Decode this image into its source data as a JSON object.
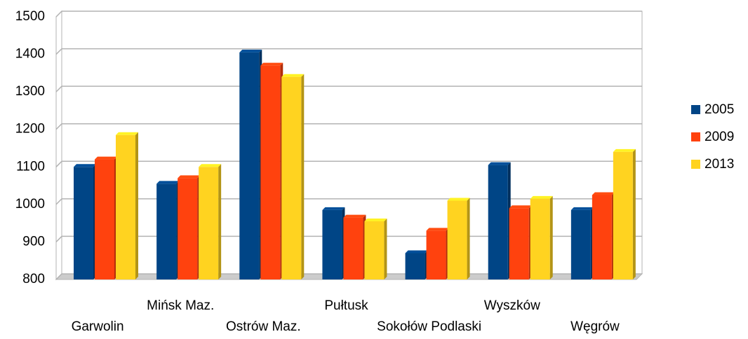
{
  "chart_data": {
    "type": "bar",
    "categories": [
      "Garwolin",
      "Mińsk Maz.",
      "Ostrów Maz.",
      "Pułtusk",
      "Sokołów Podlaski",
      "Wyszków",
      "Węgrów"
    ],
    "series": [
      {
        "name": "2005",
        "color": "#004586",
        "values": [
          1100,
          1055,
          1405,
          985,
          870,
          1105,
          985
        ]
      },
      {
        "name": "2009",
        "color": "#ff420e",
        "values": [
          1120,
          1070,
          1370,
          965,
          930,
          990,
          1025
        ]
      },
      {
        "name": "2013",
        "color": "#ffd320",
        "values": [
          1185,
          1100,
          1340,
          955,
          1010,
          1015,
          1140
        ]
      }
    ],
    "ylim": [
      800,
      1500
    ],
    "yticks": [
      800,
      900,
      1000,
      1100,
      1200,
      1300,
      1400,
      1500
    ],
    "grid": true,
    "legend": "right"
  }
}
